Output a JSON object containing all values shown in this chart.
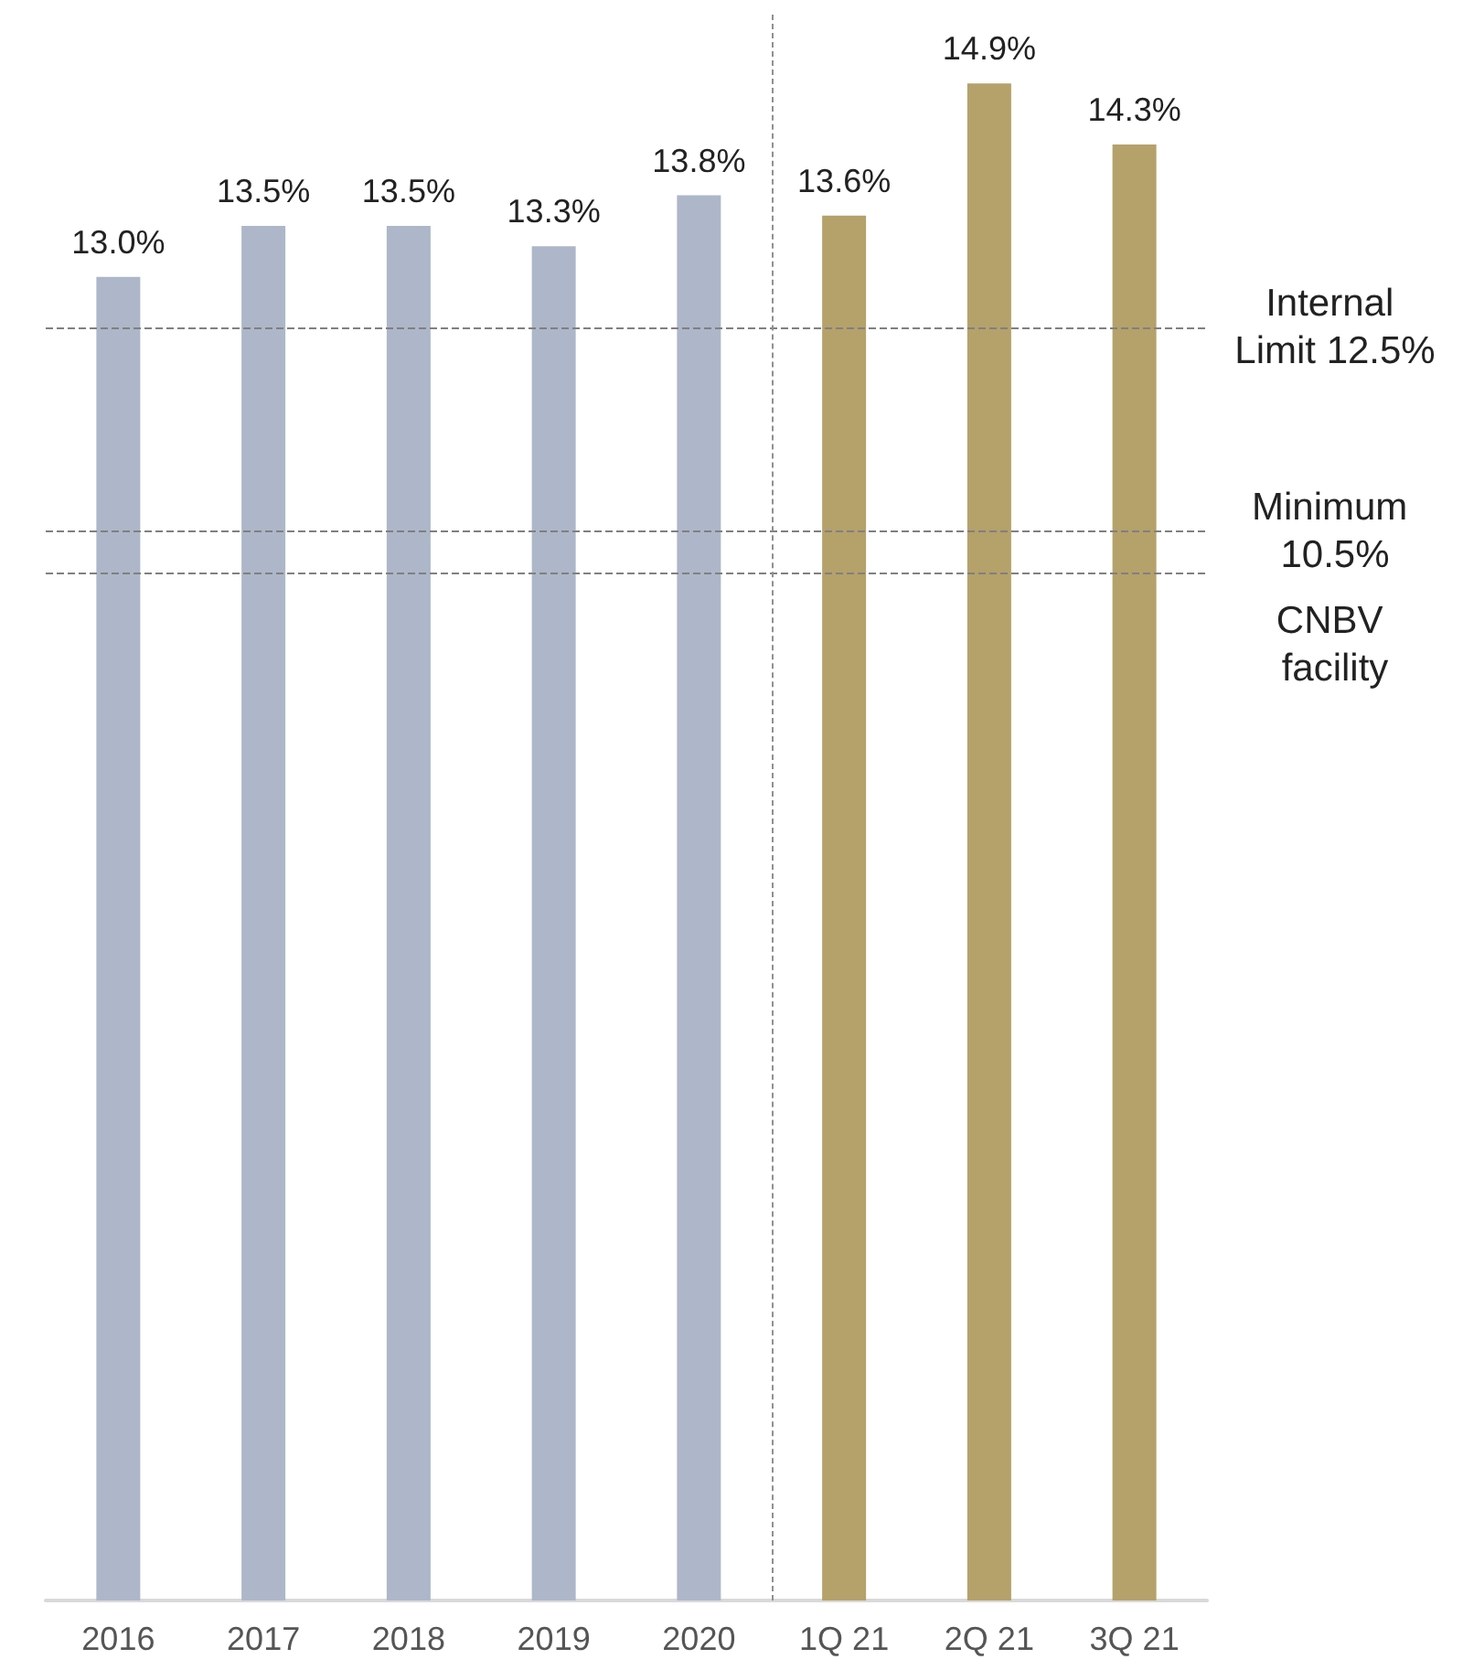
{
  "chart_data": {
    "type": "bar",
    "categories": [
      "2016",
      "2017",
      "2018",
      "2019",
      "2020",
      "1Q 21",
      "2Q 21",
      "3Q 21"
    ],
    "values": [
      13.0,
      13.5,
      13.5,
      13.3,
      13.8,
      13.6,
      14.9,
      14.3
    ],
    "colors": [
      "#adb7c9",
      "#adb7c9",
      "#adb7c9",
      "#adb7c9",
      "#adb7c9",
      "#b5a16a",
      "#b5a16a",
      "#b5a16a"
    ],
    "value_labels": [
      "13.0%",
      "13.5%",
      "13.5%",
      "13.3%",
      "13.8%",
      "13.6%",
      "14.9%",
      "14.3%"
    ],
    "tick_labels": "x",
    "grid": false,
    "ref_lines": [
      {
        "axis": "y",
        "value": 12.5,
        "label": "Internal Limit 12.5%",
        "color": "#808080",
        "line_style": "dashed"
      },
      {
        "axis": "y",
        "value": 10.5,
        "label": "Minimum 10.5%",
        "color": "#808080",
        "line_style": "dashed"
      },
      {
        "axis": "y",
        "value": 10.1,
        "label": "CNBV facility",
        "color": "#808080",
        "line_style": "dashed"
      }
    ]
  }
}
